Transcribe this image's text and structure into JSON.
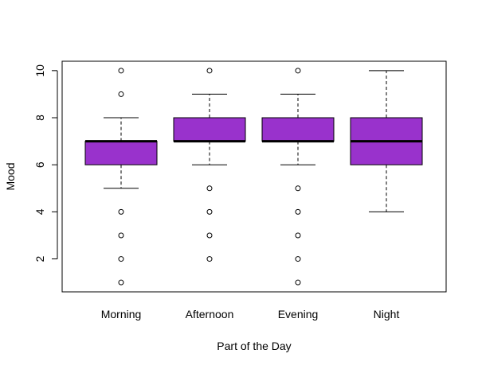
{
  "chart_data": {
    "type": "boxplot",
    "title": "",
    "xlabel": "Part of the Day",
    "ylabel": "Mood",
    "categories": [
      "Morning",
      "Afternoon",
      "Evening",
      "Night"
    ],
    "yticks": [
      2,
      4,
      6,
      8,
      10
    ],
    "ylim": [
      0.6,
      10.4
    ],
    "box_color": "#9932CC",
    "boxes": [
      {
        "category": "Morning",
        "whisker_low": 5,
        "q1": 6,
        "median": 7,
        "q3": 7,
        "whisker_high": 8,
        "outliers": [
          1,
          2,
          3,
          4,
          9,
          10
        ]
      },
      {
        "category": "Afternoon",
        "whisker_low": 6,
        "q1": 7,
        "median": 7,
        "q3": 8,
        "whisker_high": 9,
        "outliers": [
          2,
          3,
          4,
          5,
          10
        ]
      },
      {
        "category": "Evening",
        "whisker_low": 6,
        "q1": 7,
        "median": 7,
        "q3": 8,
        "whisker_high": 9,
        "outliers": [
          1,
          2,
          3,
          4,
          5,
          10
        ]
      },
      {
        "category": "Night",
        "whisker_low": 4,
        "q1": 6,
        "median": 7,
        "q3": 8,
        "whisker_high": 10,
        "outliers": []
      }
    ]
  }
}
